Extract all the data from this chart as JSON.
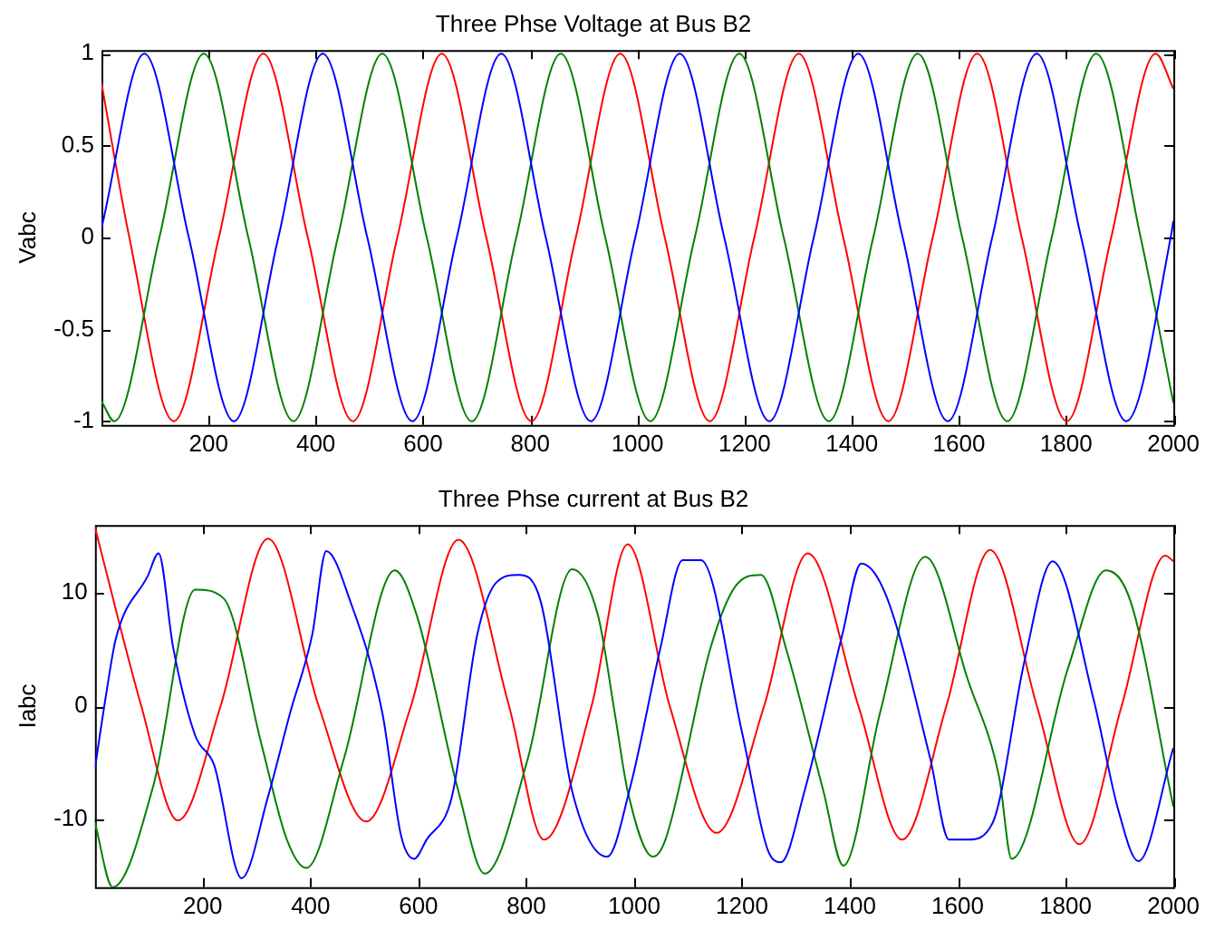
{
  "chart_data": [
    {
      "type": "line",
      "title": "Three Phse Voltage at Bus B2",
      "ylabel": "Vabc",
      "xlim": [
        0,
        2000
      ],
      "xticks": [
        200,
        400,
        600,
        800,
        1000,
        1200,
        1400,
        1600,
        1800,
        2000
      ],
      "ylim": [
        -1.02,
        1.02
      ],
      "yticks": [
        -1,
        -0.5,
        0,
        0.5,
        1
      ],
      "grid": false,
      "legend": false,
      "marker": "none",
      "line_style": "solid",
      "series": [
        {
          "color": "#0000ff",
          "x": [
            0,
            80,
            163,
            247,
            330,
            413,
            496,
            580,
            663,
            746,
            829,
            913,
            996,
            1079,
            1162,
            1246,
            1329,
            1412,
            1495,
            1579,
            1662,
            1745,
            1828,
            1912,
            1995,
            2000
          ],
          "values": [
            0.05,
            1,
            0,
            -1,
            0,
            1,
            0,
            -1,
            0,
            1,
            0,
            -1,
            0,
            1,
            0,
            -1,
            0,
            1,
            0,
            -1,
            0,
            1,
            0,
            -1,
            0,
            0.09
          ]
        },
        {
          "color": "#008000",
          "x": [
            0,
            24,
            108,
            191,
            274,
            358,
            441,
            524,
            607,
            691,
            774,
            857,
            940,
            1024,
            1107,
            1190,
            1273,
            1357,
            1440,
            1523,
            1606,
            1690,
            1773,
            1856,
            1939,
            2000
          ],
          "values": [
            -0.89,
            -1,
            0,
            1,
            0,
            -1,
            0,
            1,
            0,
            -1,
            0,
            1,
            0,
            -1,
            0,
            1,
            0,
            -1,
            0,
            1,
            0,
            -1,
            0,
            1,
            0,
            -0.9
          ]
        },
        {
          "color": "#ff0000",
          "x": [
            0,
            52,
            135,
            219,
            302,
            385,
            469,
            552,
            635,
            718,
            802,
            885,
            968,
            1051,
            1135,
            1218,
            1301,
            1384,
            1468,
            1551,
            1634,
            1717,
            1801,
            1884,
            1967,
            2000
          ],
          "values": [
            0.84,
            0,
            -1,
            0,
            1,
            0,
            -1,
            0,
            1,
            0,
            -1,
            0,
            1,
            0,
            -1,
            0,
            1,
            0,
            -1,
            0,
            1,
            0,
            -1,
            0,
            1,
            0.81
          ]
        }
      ]
    },
    {
      "type": "line",
      "title": "Three Phse current at Bus B2",
      "ylabel": "Iabc",
      "xlim": [
        0,
        2000
      ],
      "xticks": [
        200,
        400,
        600,
        800,
        1000,
        1200,
        1400,
        1600,
        1800,
        2000
      ],
      "ylim": [
        -16,
        16
      ],
      "yticks": [
        -10,
        0,
        10
      ],
      "grid": false,
      "legend": false,
      "marker": "none",
      "line_style": "solid",
      "series": [
        {
          "color": "#0000ff",
          "x": [
            0,
            21,
            39,
            98,
            118,
            145,
            186,
            221,
            272,
            321,
            362,
            403,
            429,
            474,
            533,
            568,
            592,
            615,
            662,
            709,
            744,
            786,
            827,
            885,
            950,
            994,
            1049,
            1090,
            1124,
            1200,
            1247,
            1272,
            1316,
            1386,
            1421,
            1467,
            1549,
            1584,
            1619,
            1665,
            1724,
            1776,
            1852,
            1898,
            1935,
            2000
          ],
          "values": [
            -5.5,
            1.1,
            6.0,
            11.5,
            13.5,
            5.2,
            -2.6,
            -5.2,
            -15.2,
            -8.0,
            -0.6,
            6.3,
            13.7,
            9.2,
            -0.6,
            -11.5,
            -13.5,
            -11.8,
            -8.0,
            6.3,
            10.9,
            11.6,
            9.2,
            -7.5,
            -13.3,
            -6.9,
            5.2,
            12.9,
            12.9,
            -2.3,
            -12.6,
            -13.8,
            -7.5,
            6.3,
            12.6,
            9.8,
            -4.6,
            -11.8,
            -11.8,
            -10.3,
            4.0,
            12.8,
            0.6,
            -9.2,
            -13.7,
            -3.7
          ]
        },
        {
          "color": "#008000",
          "x": [
            0,
            33,
            109,
            186,
            239,
            309,
            356,
            392,
            462,
            556,
            597,
            674,
            723,
            803,
            885,
            933,
            965,
            988,
            1035,
            1058,
            1142,
            1188,
            1235,
            1281,
            1351,
            1388,
            1456,
            1540,
            1619,
            1677,
            1700,
            1805,
            1875,
            1921,
            2000
          ],
          "values": [
            -10.3,
            -16,
            -6.9,
            10.3,
            9.5,
            -3.4,
            -11.8,
            -14.3,
            -4.6,
            12.0,
            8.0,
            -7.5,
            -14.8,
            -4.6,
            12.1,
            8.0,
            -0.9,
            -7.5,
            -13.3,
            -11.8,
            5.2,
            10.6,
            11.6,
            5.2,
            -7.5,
            -14.1,
            -0.6,
            13.2,
            2.3,
            -6.3,
            -13.5,
            3.4,
            12.0,
            9.2,
            -8.9
          ]
        },
        {
          "color": "#ff0000",
          "x": [
            0,
            86,
            154,
            233,
            321,
            415,
            503,
            586,
            674,
            768,
            833,
            921,
            988,
            1066,
            1153,
            1241,
            1322,
            1416,
            1497,
            1579,
            1660,
            1747,
            1826,
            1904,
            1985,
            2000
          ],
          "values": [
            15.8,
            0,
            -10.1,
            0,
            14.8,
            0,
            -10.2,
            0,
            14.7,
            0,
            -11.8,
            0,
            14.3,
            0,
            -11.2,
            0,
            13.5,
            0,
            -11.8,
            0,
            13.8,
            0,
            -12.2,
            0,
            13.3,
            12.8
          ]
        }
      ]
    }
  ]
}
